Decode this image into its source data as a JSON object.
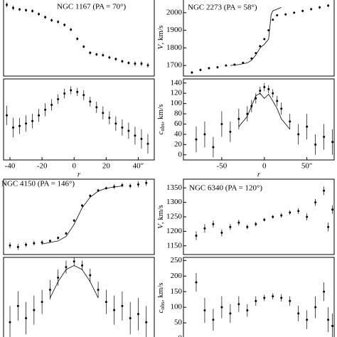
{
  "chart_data": [
    {
      "type": "scatter",
      "title": "NGC 1167 (PA = 70°)",
      "xlim": [
        -44,
        50
      ],
      "ylim": [
        0,
        100
      ],
      "series": [
        {
          "color": "#000",
          "x": [
            -42,
            -38,
            -34,
            -30,
            -26,
            -22,
            -18,
            -14,
            -10,
            -6,
            -2,
            2,
            6,
            10,
            14,
            18,
            22,
            26,
            30,
            34,
            38,
            42,
            46
          ],
          "values": [
            92,
            88,
            86,
            85,
            84,
            80,
            76,
            72,
            70,
            66,
            60,
            48,
            38,
            30,
            28,
            27,
            24,
            22,
            19,
            17,
            16,
            16,
            14
          ],
          "errors": [
            3,
            3,
            2,
            2,
            2,
            2,
            2,
            2,
            2,
            2,
            2,
            2,
            2,
            2,
            2,
            2,
            2,
            2,
            2,
            2,
            3,
            3,
            3
          ]
        }
      ]
    },
    {
      "type": "scatter",
      "xlim": [
        -44,
        50
      ],
      "ylim": [
        0,
        100
      ],
      "xlabel": "r",
      "xticks": [
        -40,
        -20,
        0,
        20,
        {
          "value": 40,
          "label": "40″"
        }
      ],
      "series": [
        {
          "color": "#000",
          "x": [
            -42,
            -38,
            -34,
            -30,
            -26,
            -22,
            -18,
            -14,
            -10,
            -6,
            -2,
            2,
            6,
            10,
            14,
            18,
            22,
            26,
            30,
            34,
            38,
            42,
            46
          ],
          "values": [
            55,
            40,
            42,
            45,
            48,
            55,
            62,
            68,
            75,
            82,
            86,
            84,
            80,
            72,
            65,
            58,
            52,
            45,
            40,
            36,
            30,
            26,
            20
          ],
          "errors": [
            12,
            12,
            10,
            10,
            9,
            8,
            8,
            7,
            6,
            6,
            5,
            5,
            6,
            6,
            7,
            8,
            8,
            9,
            10,
            10,
            11,
            12,
            12
          ]
        }
      ]
    },
    {
      "type": "scatter",
      "title": "NGC 2273 (PA = 58°)",
      "xlim": [
        -95,
        82
      ],
      "ylim": [
        1640,
        2080
      ],
      "yticks": [
        1700,
        1800,
        1900,
        2000
      ],
      "ylabel": [
        "V",
        ", km/s"
      ],
      "series": [
        {
          "color": "#000",
          "x": [
            -85,
            -75,
            -65,
            -55,
            -45,
            -35,
            -25,
            -15,
            -10,
            -5,
            0,
            5,
            10,
            15,
            25,
            35,
            45,
            55,
            65,
            75
          ],
          "values": [
            1660,
            1675,
            1685,
            1690,
            1700,
            1705,
            1715,
            1740,
            1770,
            1810,
            1850,
            1900,
            1960,
            1985,
            1990,
            2000,
            2010,
            2020,
            2030,
            2040
          ],
          "errors": [
            8,
            8,
            7,
            7,
            6,
            6,
            6,
            6,
            5,
            5,
            5,
            5,
            5,
            5,
            6,
            6,
            7,
            7,
            8,
            8
          ]
        },
        {
          "type": "line",
          "color": "#000",
          "x": [
            -40,
            -30,
            -20,
            -15,
            -10,
            -5,
            0,
            5,
            8,
            10,
            15,
            20
          ],
          "values": [
            1700,
            1705,
            1715,
            1730,
            1760,
            1800,
            1820,
            1850,
            1990,
            2010,
            2020,
            2030
          ]
        }
      ]
    },
    {
      "type": "scatter",
      "xlim": [
        -95,
        82
      ],
      "ylim": [
        -10,
        148
      ],
      "yticks": [
        0,
        20,
        40,
        60,
        80,
        100,
        120,
        140
      ],
      "ylabel": [
        "c",
        "obs",
        ", km/s"
      ],
      "xlabel": "r",
      "xticks": [
        -50,
        0,
        {
          "value": 50,
          "label": "50″"
        }
      ],
      "series": [
        {
          "color": "#000",
          "x": [
            -80,
            -70,
            -60,
            -50,
            -40,
            -30,
            -20,
            -15,
            -10,
            -5,
            0,
            5,
            10,
            15,
            20,
            30,
            40,
            50,
            60,
            70,
            80
          ],
          "values": [
            30,
            40,
            15,
            60,
            45,
            70,
            80,
            95,
            110,
            125,
            132,
            128,
            120,
            105,
            90,
            65,
            40,
            55,
            20,
            35,
            25
          ],
          "errors": [
            25,
            25,
            20,
            25,
            20,
            20,
            15,
            12,
            10,
            8,
            8,
            8,
            8,
            10,
            12,
            15,
            20,
            25,
            20,
            25,
            25
          ]
        },
        {
          "type": "line",
          "color": "#000",
          "x": [
            -30,
            -20,
            -15,
            -10,
            -5,
            0,
            5,
            10,
            15,
            20,
            30
          ],
          "values": [
            55,
            75,
            95,
            115,
            120,
            110,
            118,
            105,
            90,
            70,
            50
          ]
        }
      ]
    },
    {
      "type": "scatter",
      "title": "NGC 4150 (PA = 146°)",
      "xlim": [
        -44,
        50
      ],
      "ylim": [
        0,
        100
      ],
      "series": [
        {
          "color": "#000",
          "x": [
            -40,
            -35,
            -30,
            -25,
            -20,
            -15,
            -10,
            -5,
            0,
            5,
            10,
            15,
            20,
            25,
            30,
            35,
            40,
            45
          ],
          "values": [
            12,
            10,
            13,
            15,
            16,
            18,
            22,
            28,
            45,
            65,
            78,
            85,
            88,
            90,
            92,
            91,
            93,
            95
          ],
          "errors": [
            4,
            4,
            3,
            3,
            3,
            2,
            2,
            2,
            2,
            2,
            2,
            2,
            2,
            3,
            3,
            3,
            4,
            4
          ]
        },
        {
          "type": "line",
          "color": "#000",
          "x": [
            -20,
            -10,
            -5,
            0,
            5,
            10,
            15,
            20,
            30
          ],
          "values": [
            14,
            18,
            24,
            40,
            62,
            76,
            84,
            88,
            91
          ]
        }
      ]
    },
    {
      "type": "scatter",
      "xlim": [
        -44,
        50
      ],
      "ylim": [
        0,
        100
      ],
      "series": [
        {
          "color": "#000",
          "x": [
            -40,
            -35,
            -30,
            -25,
            -20,
            -15,
            -10,
            -5,
            0,
            5,
            10,
            15,
            20,
            25,
            30,
            35,
            40,
            45
          ],
          "values": [
            20,
            40,
            25,
            35,
            45,
            60,
            75,
            88,
            95,
            90,
            78,
            60,
            45,
            35,
            40,
            25,
            30,
            20
          ],
          "errors": [
            20,
            18,
            20,
            18,
            15,
            12,
            10,
            8,
            6,
            6,
            8,
            10,
            15,
            18,
            18,
            20,
            20,
            20
          ]
        },
        {
          "type": "line",
          "color": "#000",
          "x": [
            -15,
            -10,
            -5,
            0,
            5,
            10,
            15
          ],
          "values": [
            50,
            70,
            85,
            90,
            85,
            70,
            50
          ]
        }
      ]
    },
    {
      "type": "scatter",
      "title": "NGC 6340 (PA = 120°)",
      "xlim": [
        -95,
        82
      ],
      "ylim": [
        1120,
        1380
      ],
      "yticks": [
        1150,
        1200,
        1250,
        1300,
        1350
      ],
      "ylabel": [
        "V",
        ", km/s"
      ],
      "series": [
        {
          "color": "#000",
          "x": [
            -80,
            -70,
            -60,
            -50,
            -40,
            -30,
            -20,
            -10,
            0,
            10,
            20,
            30,
            40,
            50,
            60,
            70,
            75,
            80
          ],
          "values": [
            1185,
            1210,
            1225,
            1195,
            1215,
            1230,
            1215,
            1225,
            1240,
            1250,
            1255,
            1265,
            1270,
            1250,
            1300,
            1340,
            1215,
            1275
          ],
          "errors": [
            15,
            15,
            12,
            12,
            10,
            10,
            8,
            8,
            6,
            6,
            8,
            8,
            10,
            12,
            12,
            15,
            15,
            15
          ]
        }
      ]
    },
    {
      "type": "scatter",
      "xlim": [
        -95,
        82
      ],
      "ylim": [
        0,
        260
      ],
      "yticks": [
        0,
        50,
        100,
        150,
        200,
        250
      ],
      "ylabel": [
        "c",
        "obs",
        ", km/s"
      ],
      "series": [
        {
          "color": "#000",
          "x": [
            -80,
            -70,
            -60,
            -50,
            -40,
            -30,
            -20,
            -10,
            0,
            10,
            20,
            30,
            40,
            50,
            60,
            70,
            75,
            80
          ],
          "values": [
            180,
            90,
            60,
            100,
            80,
            110,
            90,
            120,
            130,
            135,
            130,
            120,
            80,
            60,
            100,
            150,
            60,
            40
          ],
          "errors": [
            30,
            40,
            35,
            35,
            30,
            25,
            20,
            15,
            10,
            10,
            12,
            15,
            25,
            30,
            35,
            30,
            40,
            40
          ]
        }
      ]
    }
  ]
}
